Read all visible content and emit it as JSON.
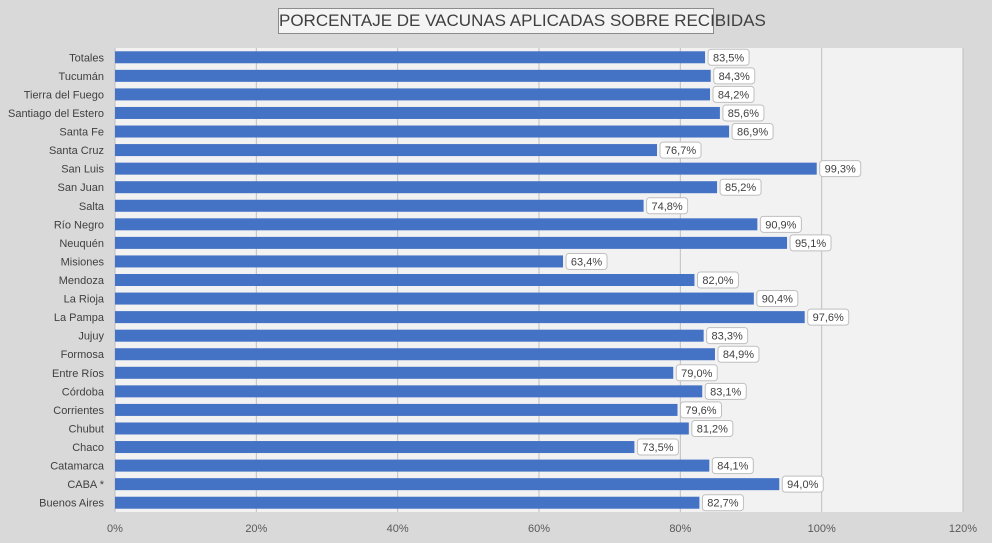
{
  "chart_data": {
    "type": "bar",
    "orientation": "horizontal",
    "title": "PORCENTAJE DE VACUNAS APLICADAS SOBRE RECIBIDAS",
    "xlabel": "",
    "ylabel": "",
    "xlim": [
      0,
      120
    ],
    "x_ticks": [
      0,
      20,
      40,
      60,
      80,
      100,
      120
    ],
    "x_tick_labels": [
      "0%",
      "20%",
      "40%",
      "60%",
      "80%",
      "100%",
      "120%"
    ],
    "grid": true,
    "legend": "none",
    "bar_color": "#4472c4",
    "categories": [
      "Totales",
      "Tucumán",
      "Tierra del Fuego",
      "Santiago del Estero",
      "Santa Fe",
      "Santa Cruz",
      "San Luis",
      "San Juan",
      "Salta",
      "Río Negro",
      "Neuquén",
      "Misiones",
      "Mendoza",
      "La Rioja",
      "La Pampa",
      "Jujuy",
      "Formosa",
      "Entre Ríos",
      "Córdoba",
      "Corrientes",
      "Chubut",
      "Chaco",
      "Catamarca",
      "CABA *",
      "Buenos Aires"
    ],
    "values": [
      83.5,
      84.3,
      84.2,
      85.6,
      86.9,
      76.7,
      99.3,
      85.2,
      74.8,
      90.9,
      95.1,
      63.4,
      82.0,
      90.4,
      97.6,
      83.3,
      84.9,
      79.0,
      83.1,
      79.6,
      81.2,
      73.5,
      84.1,
      94.0,
      82.7
    ],
    "data_labels": [
      "83,5%",
      "84,3%",
      "84,2%",
      "85,6%",
      "86,9%",
      "76,7%",
      "99,3%",
      "85,2%",
      "74,8%",
      "90,9%",
      "95,1%",
      "63,4%",
      "82,0%",
      "90,4%",
      "97,6%",
      "83,3%",
      "84,9%",
      "79,0%",
      "83,1%",
      "79,6%",
      "81,2%",
      "73,5%",
      "84,1%",
      "94,0%",
      "82,7%"
    ]
  }
}
